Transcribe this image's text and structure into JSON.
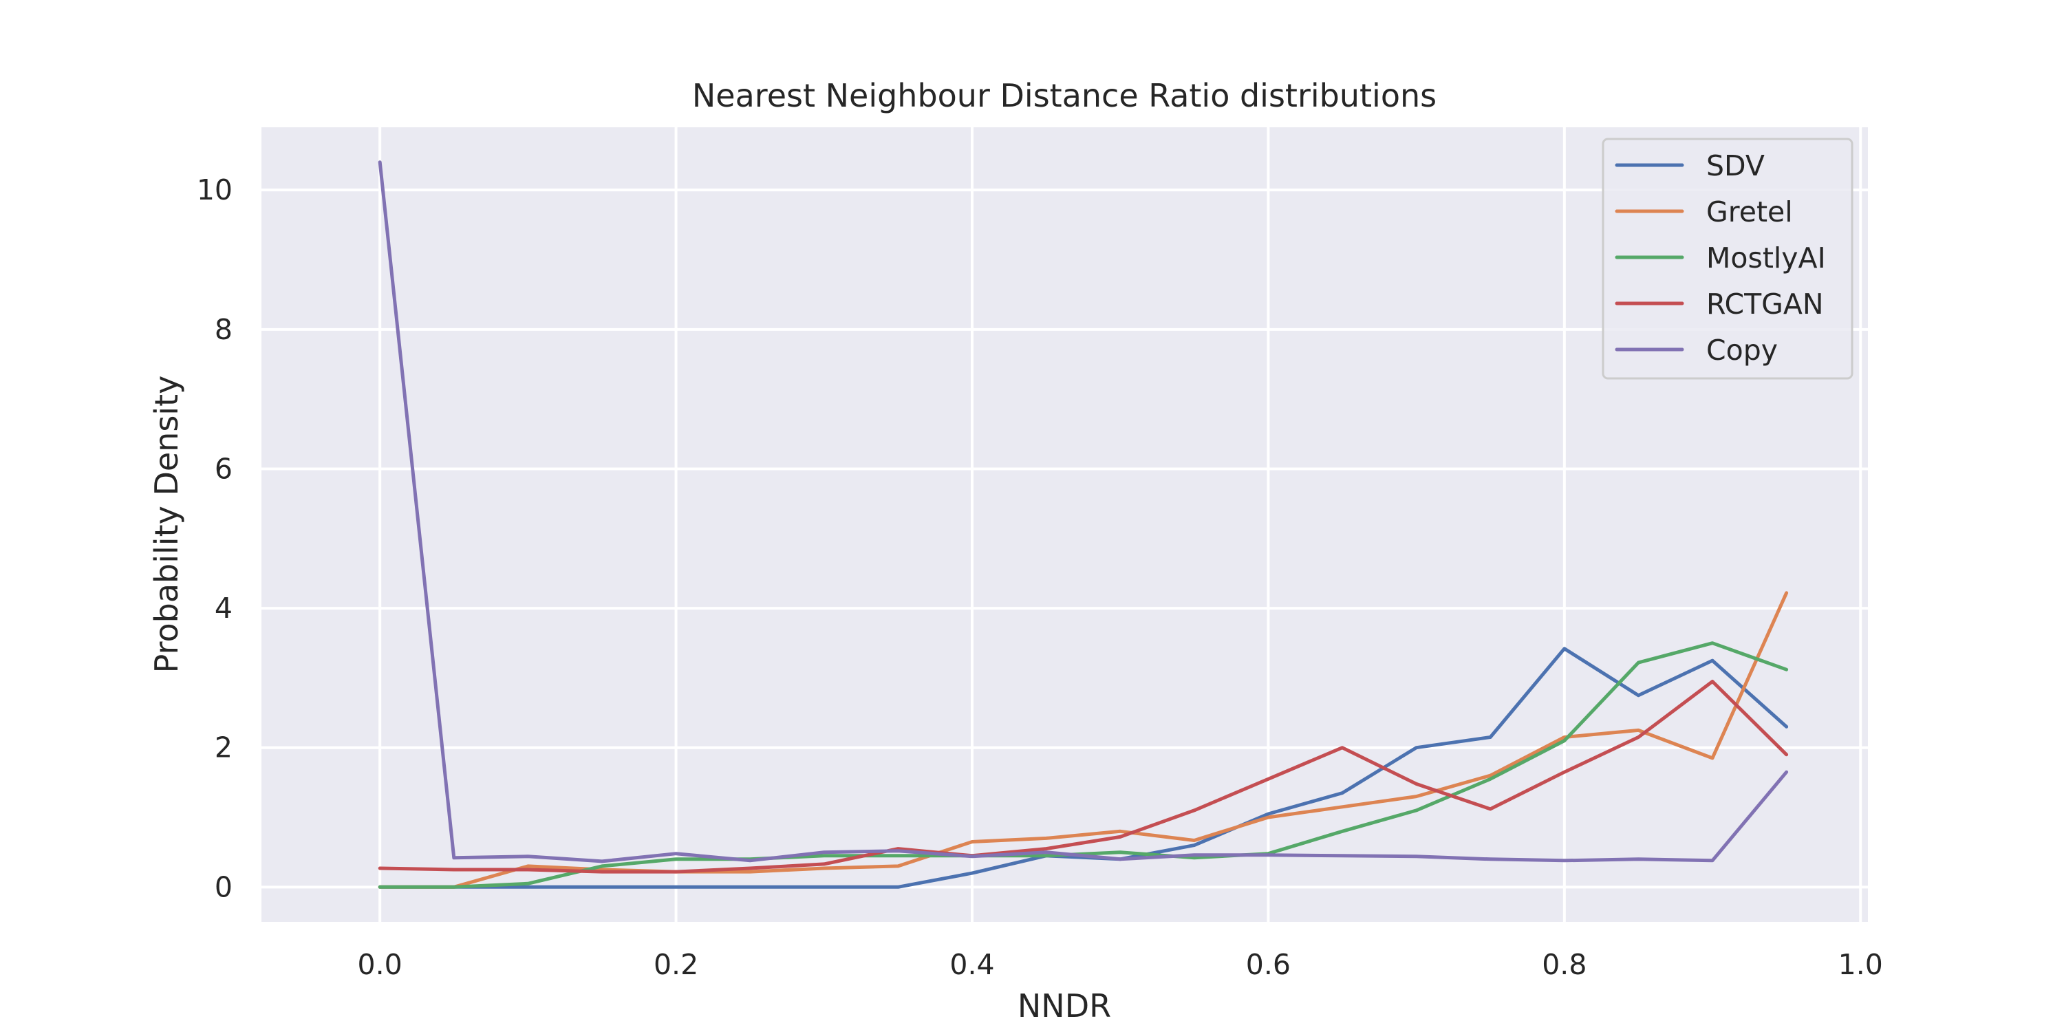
{
  "chart_data": {
    "type": "line",
    "title": "Nearest Neighbour Distance Ratio distributions",
    "xlabel": "NNDR",
    "ylabel": "Probability Density",
    "xlim": [
      -0.08,
      1.005
    ],
    "ylim": [
      -0.5,
      10.9
    ],
    "xticks": [
      0.0,
      0.2,
      0.4,
      0.6,
      0.8,
      1.0
    ],
    "xtick_labels": [
      "0.0",
      "0.2",
      "0.4",
      "0.6",
      "0.8",
      "1.0"
    ],
    "yticks": [
      0,
      2,
      4,
      6,
      8,
      10
    ],
    "ytick_labels": [
      "0",
      "2",
      "4",
      "6",
      "8",
      "10"
    ],
    "grid": true,
    "legend_position": "top-right",
    "x": [
      0.0,
      0.05,
      0.1,
      0.15,
      0.2,
      0.25,
      0.3,
      0.35,
      0.4,
      0.45,
      0.5,
      0.55,
      0.6,
      0.65,
      0.7,
      0.75,
      0.8,
      0.85,
      0.9,
      0.95
    ],
    "series": [
      {
        "name": "SDV",
        "color": "#4c72b0",
        "values": [
          0.0,
          0.0,
          0.0,
          0.0,
          0.0,
          0.0,
          0.0,
          0.0,
          0.2,
          0.45,
          0.4,
          0.6,
          1.05,
          1.35,
          2.0,
          2.15,
          3.42,
          2.75,
          3.25,
          2.3
        ]
      },
      {
        "name": "Gretel",
        "color": "#dd8452",
        "values": [
          0.0,
          0.0,
          0.3,
          0.25,
          0.22,
          0.22,
          0.27,
          0.3,
          0.65,
          0.7,
          0.8,
          0.67,
          1.0,
          1.15,
          1.3,
          1.6,
          2.15,
          2.25,
          1.85,
          4.22
        ]
      },
      {
        "name": "MostlyAI",
        "color": "#55a868",
        "values": [
          0.0,
          0.0,
          0.05,
          0.3,
          0.4,
          0.4,
          0.45,
          0.45,
          0.45,
          0.45,
          0.5,
          0.42,
          0.48,
          0.8,
          1.1,
          1.55,
          2.1,
          3.22,
          3.5,
          3.12
        ]
      },
      {
        "name": "RCTGAN",
        "color": "#c44e52",
        "values": [
          0.27,
          0.25,
          0.25,
          0.22,
          0.22,
          0.27,
          0.33,
          0.55,
          0.45,
          0.55,
          0.72,
          1.1,
          1.55,
          2.0,
          1.48,
          1.12,
          1.65,
          2.15,
          2.95,
          1.9
        ]
      },
      {
        "name": "Copy",
        "color": "#8172b3",
        "values": [
          10.4,
          0.42,
          0.44,
          0.37,
          0.48,
          0.38,
          0.5,
          0.52,
          0.44,
          0.5,
          0.4,
          0.46,
          0.46,
          0.45,
          0.44,
          0.4,
          0.38,
          0.4,
          0.38,
          1.65
        ]
      }
    ]
  }
}
